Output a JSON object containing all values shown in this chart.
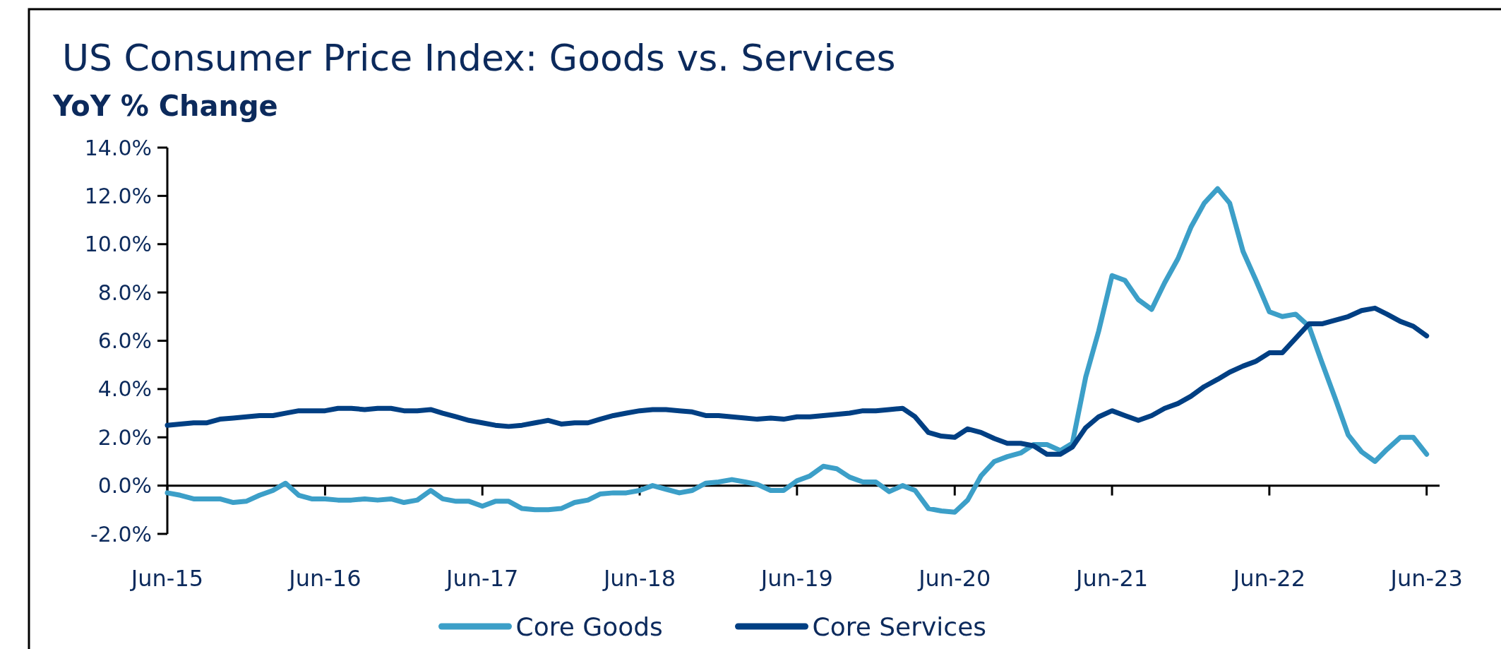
{
  "chart_data": {
    "type": "line",
    "title": "US Consumer Price Index: Goods vs. Services",
    "ylabel": "YoY % Change",
    "x": [
      "2015-06",
      "2015-07",
      "2015-08",
      "2015-09",
      "2015-10",
      "2015-11",
      "2015-12",
      "2016-01",
      "2016-02",
      "2016-03",
      "2016-04",
      "2016-05",
      "2016-06",
      "2016-07",
      "2016-08",
      "2016-09",
      "2016-10",
      "2016-11",
      "2016-12",
      "2017-01",
      "2017-02",
      "2017-03",
      "2017-04",
      "2017-05",
      "2017-06",
      "2017-07",
      "2017-08",
      "2017-09",
      "2017-10",
      "2017-11",
      "2017-12",
      "2018-01",
      "2018-02",
      "2018-03",
      "2018-04",
      "2018-05",
      "2018-06",
      "2018-07",
      "2018-08",
      "2018-09",
      "2018-10",
      "2018-11",
      "2018-12",
      "2019-01",
      "2019-02",
      "2019-03",
      "2019-04",
      "2019-05",
      "2019-06",
      "2019-07",
      "2019-08",
      "2019-09",
      "2019-10",
      "2019-11",
      "2019-12",
      "2020-01",
      "2020-02",
      "2020-03",
      "2020-04",
      "2020-05",
      "2020-06",
      "2020-07",
      "2020-08",
      "2020-09",
      "2020-10",
      "2020-11",
      "2020-12",
      "2021-01",
      "2021-02",
      "2021-03",
      "2021-04",
      "2021-05",
      "2021-06",
      "2021-07",
      "2021-08",
      "2021-09",
      "2021-10",
      "2021-11",
      "2021-12",
      "2022-01",
      "2022-02",
      "2022-03",
      "2022-04",
      "2022-05",
      "2022-06",
      "2022-07",
      "2022-08",
      "2022-09",
      "2022-10",
      "2022-11",
      "2022-12",
      "2023-01",
      "2023-02",
      "2023-03",
      "2023-04",
      "2023-05",
      "2023-06"
    ],
    "series": [
      {
        "name": "Core Goods",
        "color": "#3c9fc8",
        "values": [
          -0.3,
          -0.4,
          -0.55,
          -0.55,
          -0.55,
          -0.7,
          -0.65,
          -0.4,
          -0.2,
          0.1,
          -0.4,
          -0.55,
          -0.55,
          -0.6,
          -0.6,
          -0.55,
          -0.6,
          -0.55,
          -0.7,
          -0.6,
          -0.2,
          -0.55,
          -0.65,
          -0.65,
          -0.85,
          -0.65,
          -0.65,
          -0.95,
          -1.0,
          -1.0,
          -0.95,
          -0.7,
          -0.6,
          -0.35,
          -0.3,
          -0.3,
          -0.2,
          0.0,
          -0.15,
          -0.3,
          -0.2,
          0.1,
          0.15,
          0.25,
          0.15,
          0.05,
          -0.2,
          -0.2,
          0.2,
          0.4,
          0.8,
          0.7,
          0.35,
          0.15,
          0.15,
          -0.25,
          0.0,
          -0.2,
          -0.95,
          -1.05,
          -1.1,
          -0.6,
          0.4,
          1.0,
          1.2,
          1.35,
          1.7,
          1.7,
          1.45,
          1.75,
          4.5,
          6.4,
          8.7,
          8.5,
          7.7,
          7.3,
          8.4,
          9.4,
          10.7,
          11.7,
          12.3,
          11.7,
          9.7,
          8.5,
          7.2,
          7.0,
          7.1,
          6.6,
          5.1,
          3.6,
          2.1,
          1.4,
          1.0,
          1.5,
          2.0,
          2.0,
          1.3
        ]
      },
      {
        "name": "Core Services",
        "color": "#003f83",
        "values": [
          2.5,
          2.55,
          2.6,
          2.6,
          2.75,
          2.8,
          2.85,
          2.9,
          2.9,
          3.0,
          3.1,
          3.1,
          3.1,
          3.2,
          3.2,
          3.15,
          3.2,
          3.2,
          3.1,
          3.1,
          3.15,
          3.0,
          2.85,
          2.7,
          2.6,
          2.5,
          2.45,
          2.5,
          2.6,
          2.7,
          2.55,
          2.6,
          2.6,
          2.75,
          2.9,
          3.0,
          3.1,
          3.15,
          3.15,
          3.1,
          3.05,
          2.9,
          2.9,
          2.85,
          2.8,
          2.75,
          2.8,
          2.75,
          2.85,
          2.85,
          2.9,
          2.95,
          3.0,
          3.1,
          3.1,
          3.15,
          3.2,
          2.85,
          2.2,
          2.05,
          2.0,
          2.35,
          2.2,
          1.95,
          1.75,
          1.75,
          1.65,
          1.3,
          1.3,
          1.6,
          2.4,
          2.85,
          3.1,
          2.9,
          2.7,
          2.9,
          3.2,
          3.4,
          3.7,
          4.1,
          4.4,
          4.7,
          4.95,
          5.15,
          5.5,
          5.5,
          6.1,
          6.7,
          6.7,
          6.85,
          7.0,
          7.25,
          7.35,
          7.1,
          6.8,
          6.6,
          6.2
        ]
      }
    ],
    "xlim": [
      "2015-06",
      "2023-07"
    ],
    "xticks": [
      {
        "value": "2015-06",
        "label": "Jun-15"
      },
      {
        "value": "2016-06",
        "label": "Jun-16"
      },
      {
        "value": "2017-06",
        "label": "Jun-17"
      },
      {
        "value": "2018-06",
        "label": "Jun-18"
      },
      {
        "value": "2019-06",
        "label": "Jun-19"
      },
      {
        "value": "2020-06",
        "label": "Jun-20"
      },
      {
        "value": "2021-06",
        "label": "Jun-21"
      },
      {
        "value": "2022-06",
        "label": "Jun-22"
      },
      {
        "value": "2023-06",
        "label": "Jun-23"
      }
    ],
    "ylim": [
      -2,
      14
    ],
    "yticks": [
      {
        "value": -2,
        "label": "-2.0%"
      },
      {
        "value": 0,
        "label": "0.0%"
      },
      {
        "value": 2,
        "label": "2.0%"
      },
      {
        "value": 4,
        "label": "4.0%"
      },
      {
        "value": 6,
        "label": "6.0%"
      },
      {
        "value": 8,
        "label": "8.0%"
      },
      {
        "value": 10,
        "label": "10.0%"
      },
      {
        "value": 12,
        "label": "12.0%"
      },
      {
        "value": 14,
        "label": "14.0%"
      }
    ],
    "legend": "bottom"
  }
}
